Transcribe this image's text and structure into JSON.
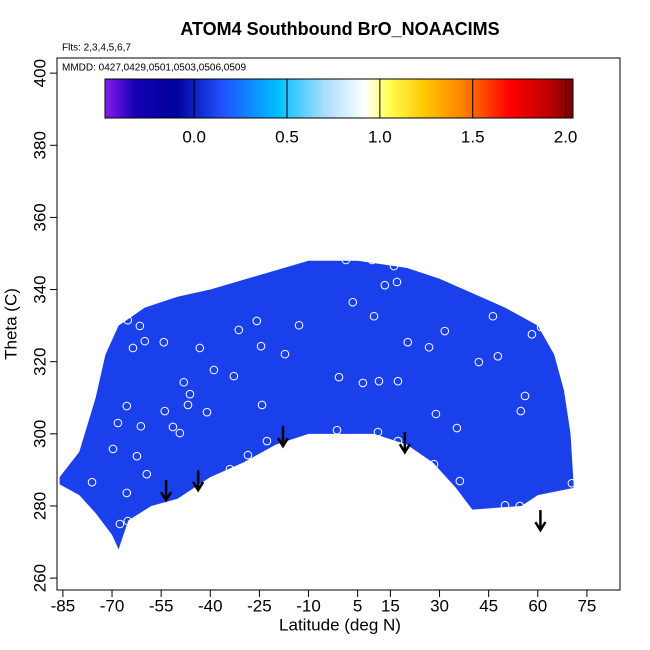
{
  "chart_data": {
    "type": "field",
    "title": "ATOM4 Southbound BrO_NOAACIMS",
    "annotations": [
      "Flts: 2,3,4,5,6,7",
      "MMDD: 0427,0429,0501,0503,0506,0509"
    ],
    "x_label": "Latitude (deg N)",
    "y_label": "Theta (C)",
    "xlim": [
      -86.8,
      85.1
    ],
    "ylim": [
      256.7,
      404.2
    ],
    "xticks": [
      -85,
      -70,
      -55,
      -40,
      -25,
      -10,
      5,
      15,
      30,
      45,
      60,
      75
    ],
    "yticks": [
      260,
      280,
      300,
      320,
      340,
      360,
      380,
      400
    ],
    "field": {
      "x": [
        -68,
        -70,
        -75,
        -80,
        -86,
        -86,
        -80,
        -75,
        -72,
        -68,
        -60,
        -50,
        -40,
        -25,
        -10,
        5,
        20,
        30,
        40,
        50,
        60,
        65,
        68,
        70,
        71,
        60,
        55,
        40,
        35,
        28,
        20,
        10,
        0,
        -10,
        -20,
        -30,
        -40,
        -50,
        -58,
        -65
      ],
      "y": [
        268,
        272,
        278,
        283,
        286,
        288,
        295,
        310,
        322,
        330,
        335,
        338,
        340,
        344,
        348,
        348,
        346,
        343,
        339,
        335,
        330,
        322,
        312,
        300,
        285,
        283,
        280,
        279,
        285,
        292,
        297,
        300,
        300,
        300,
        297,
        292,
        288,
        282,
        280,
        276
      ],
      "value": 0.1
    },
    "points": {
      "color": "#ffffff",
      "x": [
        -65.2,
        -61.5,
        -63.6,
        -60,
        -54.2,
        -43.2,
        -38.9,
        -48.1,
        -46.2,
        -46.8,
        -41,
        -53.9,
        -51.4,
        -49.3,
        -61.2,
        -65.5,
        -68.2,
        -69.7,
        -62.4,
        -59.4,
        -65.5,
        -65.2,
        -67.6,
        -63.3,
        -76.1,
        -34,
        -28.5,
        -22.7,
        -31.3,
        -25.8,
        -24.5,
        -17.2,
        -32.8,
        -24.2,
        -12.9,
        1.4,
        9.4,
        16.1,
        3.5,
        10,
        -0.7,
        6.6,
        11.5,
        17.3,
        13.3,
        17,
        20.3,
        26.8,
        31.6,
        -1.3,
        11.2,
        17.3,
        28.9,
        35.3,
        36.2,
        28.3,
        46.3,
        42,
        47.8,
        58.2,
        54.8,
        56.1,
        50,
        54.5,
        70.4,
        61
      ],
      "y": [
        331.5,
        329.9,
        323.8,
        325.7,
        325.4,
        323.8,
        317.7,
        314.3,
        311,
        308,
        306,
        306.3,
        301.9,
        300.2,
        302.1,
        307.7,
        303,
        295.8,
        293.8,
        288.8,
        283.6,
        275.8,
        275,
        275.5,
        286.6,
        290.2,
        294.1,
        298,
        328.8,
        331.3,
        324.3,
        322.1,
        316,
        308,
        330.1,
        348.2,
        348.2,
        346.5,
        336.5,
        332.6,
        315.7,
        314.1,
        314.6,
        314.6,
        341.2,
        342.1,
        325.4,
        324,
        328.5,
        301,
        300.5,
        298,
        305.5,
        301.6,
        286.9,
        291.6,
        332.6,
        319.9,
        321.5,
        327.6,
        306.3,
        310.5,
        280.2,
        280,
        286.3,
        329.6
      ]
    },
    "arrows": {
      "x": [
        -53.5,
        -43.7,
        -17.8,
        19.4,
        60.8
      ],
      "y": [
        281.6,
        284.4,
        296.6,
        294.9,
        273.3
      ],
      "color": "#000000"
    },
    "colorbar": {
      "lim": [
        -0.48,
        2.04
      ],
      "ticks": [
        {
          "value": 0,
          "label": "0.0"
        },
        {
          "value": 0.5,
          "label": "0.5"
        },
        {
          "value": 1,
          "label": "1.0"
        },
        {
          "value": 1.5,
          "label": "1.5"
        },
        {
          "value": 2,
          "label": "2.0"
        }
      ],
      "stops": [
        {
          "value": -0.48,
          "color": "#8a1cf0"
        },
        {
          "value": -0.32,
          "color": "#1400b4"
        },
        {
          "value": -0.1,
          "color": "#00009c"
        },
        {
          "value": 0.15,
          "color": "#2050ff"
        },
        {
          "value": 0.45,
          "color": "#00bfff"
        },
        {
          "value": 0.7,
          "color": "#a8dcff"
        },
        {
          "value": 0.92,
          "color": "#ffffff"
        },
        {
          "value": 1.05,
          "color": "#ffff50"
        },
        {
          "value": 1.25,
          "color": "#ffc400"
        },
        {
          "value": 1.45,
          "color": "#ff8000"
        },
        {
          "value": 1.7,
          "color": "#ff0000"
        },
        {
          "value": 1.9,
          "color": "#c00000"
        },
        {
          "value": 2.04,
          "color": "#7a0000"
        }
      ]
    }
  }
}
